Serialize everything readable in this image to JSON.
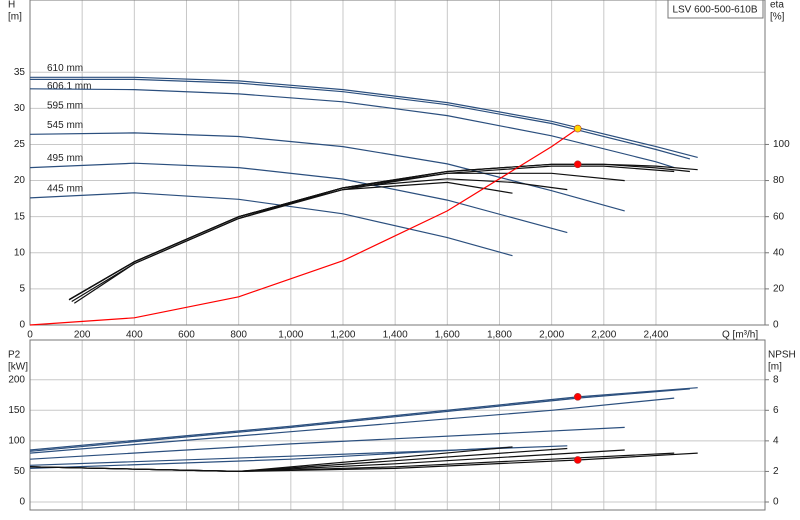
{
  "chart_data": [
    {
      "type": "line",
      "title": "LSV 600-500-610B",
      "x_label": "Q [m³/h]",
      "y_label": "H",
      "y_unit": "[m]",
      "y2_label": "eta",
      "y2_unit": "[%]",
      "xlim": [
        0,
        2818
      ],
      "ylim": [
        0,
        45
      ],
      "y2lim": [
        0,
        180
      ],
      "xticks": [
        0,
        200,
        400,
        600,
        800,
        {
          "value": 1000,
          "label": "1,000"
        },
        {
          "value": 1200,
          "label": "1,200"
        },
        {
          "value": 1400,
          "label": "1,400"
        },
        {
          "value": 1600,
          "label": "1,600"
        },
        {
          "value": 1800,
          "label": "1,800"
        },
        {
          "value": 2000,
          "label": "2,000"
        },
        {
          "value": 2200,
          "label": "2,200"
        },
        {
          "value": 2400,
          "label": "2,400"
        }
      ],
      "yticks": [
        0,
        5,
        10,
        15,
        20,
        25,
        30,
        35
      ],
      "y2ticks": [
        0,
        20,
        40,
        60,
        80,
        100
      ],
      "grid": true,
      "series": [
        {
          "name": "610 mm",
          "color": "#2b4f7e",
          "x": [
            0,
            400,
            800,
            1200,
            1600,
            2000,
            2400,
            2560
          ],
          "values": [
            34.3,
            34.3,
            33.8,
            32.6,
            30.8,
            28.2,
            24.7,
            23.2
          ]
        },
        {
          "name": "606.1 mm",
          "color": "#2b4f7e",
          "x": [
            0,
            400,
            800,
            1200,
            1600,
            2000,
            2400,
            2530
          ],
          "values": [
            34.0,
            34.0,
            33.5,
            32.3,
            30.5,
            27.9,
            24.3,
            23.0
          ]
        },
        {
          "name": "595 mm",
          "color": "#2b4f7e",
          "x": [
            0,
            400,
            800,
            1200,
            1600,
            2000,
            2400,
            2470
          ],
          "values": [
            32.7,
            32.6,
            32.0,
            30.9,
            29.0,
            26.2,
            22.6,
            21.8
          ]
        },
        {
          "name": "545 mm",
          "color": "#2b4f7e",
          "x": [
            0,
            400,
            800,
            1200,
            1600,
            2000,
            2280
          ],
          "values": [
            26.4,
            26.6,
            26.1,
            24.7,
            22.3,
            18.6,
            15.8
          ]
        },
        {
          "name": "495 mm",
          "color": "#2b4f7e",
          "x": [
            0,
            400,
            800,
            1200,
            1600,
            2060
          ],
          "values": [
            21.8,
            22.4,
            21.8,
            20.2,
            17.3,
            12.8
          ]
        },
        {
          "name": "445 mm",
          "color": "#2b4f7e",
          "x": [
            0,
            400,
            800,
            1200,
            1600,
            1850
          ],
          "values": [
            17.6,
            18.3,
            17.4,
            15.4,
            12.1,
            9.6
          ]
        },
        {
          "color": "#111111",
          "axis": "y2",
          "x": [
            150,
            400,
            800,
            1200,
            1600,
            2000,
            2200,
            2400,
            2560
          ],
          "values": [
            14,
            35,
            60,
            76,
            85,
            89,
            89,
            88,
            86
          ]
        },
        {
          "color": "#111111",
          "axis": "y2",
          "x": [
            170,
            400,
            800,
            1200,
            1600,
            2000,
            2200,
            2400,
            2530
          ],
          "values": [
            12,
            34,
            59,
            76,
            85,
            89,
            89,
            87,
            85
          ]
        },
        {
          "color": "#111111",
          "axis": "y2",
          "x": [
            160,
            400,
            800,
            1200,
            1600,
            2000,
            2200,
            2470
          ],
          "values": [
            13,
            34,
            59,
            75,
            84,
            88,
            88,
            85
          ]
        },
        {
          "color": "#111111",
          "axis": "y2",
          "x": [
            150,
            400,
            800,
            1200,
            1600,
            2000,
            2280
          ],
          "values": [
            14,
            35,
            60,
            76,
            84,
            84,
            80
          ]
        },
        {
          "color": "#111111",
          "axis": "y2",
          "x": [
            150,
            400,
            800,
            1200,
            1600,
            1850,
            2060
          ],
          "values": [
            14,
            35,
            60,
            76,
            81,
            79,
            75
          ]
        },
        {
          "color": "#111111",
          "axis": "y2",
          "x": [
            150,
            400,
            800,
            1200,
            1600,
            1850
          ],
          "values": [
            14,
            35,
            60,
            75,
            79,
            73
          ]
        },
        {
          "color": "#ff0000",
          "x": [
            0,
            400,
            800,
            1200,
            1600,
            2000,
            2100
          ],
          "values": [
            0,
            1,
            3.9,
            8.9,
            15.8,
            24.7,
            27.2
          ]
        }
      ],
      "points": [
        {
          "x": 2100,
          "y": 27.2,
          "color": "#ffd700"
        },
        {
          "x": 2100,
          "y": 89,
          "color": "#ff0000",
          "axis": "y2"
        }
      ]
    },
    {
      "type": "line",
      "y_label": "P2",
      "y_unit": "[kW]",
      "y2_label": "NPSH",
      "y2_unit": "[m]",
      "xlim": [
        0,
        2818
      ],
      "ylim": [
        0,
        265
      ],
      "y2lim": [
        0,
        10.6
      ],
      "yticks": [
        0,
        50,
        100,
        150,
        200
      ],
      "y2ticks": [
        0,
        2,
        4,
        6,
        8
      ],
      "grid": true,
      "series": [
        {
          "color": "#2b4f7e",
          "x": [
            0,
            1000,
            2100,
            2560
          ],
          "values": [
            85,
            124,
            172,
            187
          ]
        },
        {
          "color": "#2b4f7e",
          "x": [
            0,
            1000,
            2100,
            2530
          ],
          "values": [
            83,
            122,
            170,
            185
          ]
        },
        {
          "color": "#2b4f7e",
          "x": [
            0,
            1000,
            2000,
            2470
          ],
          "values": [
            80,
            115,
            150,
            170
          ]
        },
        {
          "color": "#2b4f7e",
          "x": [
            0,
            1000,
            2280
          ],
          "values": [
            70,
            95,
            122
          ]
        },
        {
          "color": "#2b4f7e",
          "x": [
            0,
            1000,
            2060
          ],
          "values": [
            60,
            75,
            92
          ]
        },
        {
          "color": "#2b4f7e",
          "x": [
            0,
            1000,
            1850
          ],
          "values": [
            55,
            70,
            90
          ]
        },
        {
          "color": "#111111",
          "axis": "y2",
          "x": [
            0,
            800,
            1400,
            2100,
            2560
          ],
          "values": [
            2.3,
            2.0,
            2.2,
            2.75,
            3.2
          ]
        },
        {
          "color": "#111111",
          "axis": "y2",
          "x": [
            0,
            800,
            1400,
            2000,
            2470
          ],
          "values": [
            2.3,
            2.0,
            2.3,
            2.8,
            3.2
          ]
        },
        {
          "color": "#111111",
          "axis": "y2",
          "x": [
            0,
            800,
            1400,
            2280
          ],
          "values": [
            2.3,
            2.0,
            2.5,
            3.4
          ]
        },
        {
          "color": "#111111",
          "axis": "y2",
          "x": [
            0,
            800,
            1400,
            2060
          ],
          "values": [
            2.3,
            2.0,
            2.7,
            3.5
          ]
        },
        {
          "color": "#111111",
          "axis": "y2",
          "x": [
            0,
            800,
            1400,
            1850
          ],
          "values": [
            2.3,
            2.0,
            2.9,
            3.6
          ]
        }
      ],
      "points": [
        {
          "x": 2100,
          "y": 172,
          "color": "#ff0000"
        },
        {
          "x": 2100,
          "y": 2.75,
          "color": "#ff0000",
          "axis": "y2"
        }
      ]
    }
  ]
}
